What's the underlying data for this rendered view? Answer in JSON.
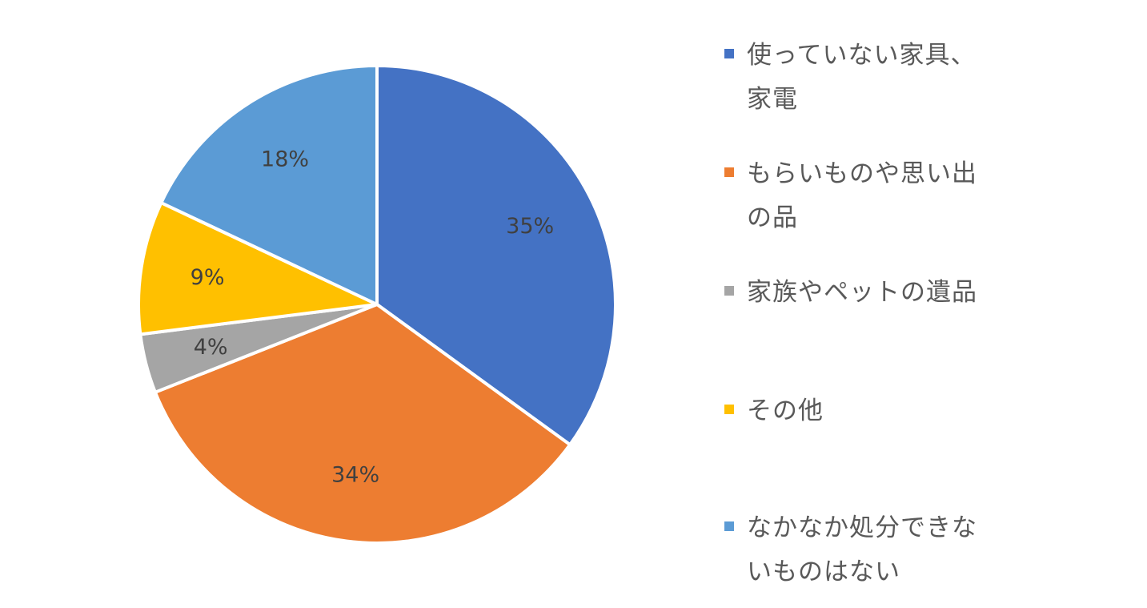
{
  "chart_data": {
    "type": "pie",
    "start_angle_deg": 0,
    "direction": "clockwise",
    "legend_position": "right",
    "slices": [
      {
        "label": "使っていない家具、家電",
        "line1": "使っていない家具、",
        "line2": "家電",
        "value": 35,
        "display": "35%",
        "color": "#4472C4"
      },
      {
        "label": "もらいものや思い出の品",
        "line1": "もらいものや思い出",
        "line2": "の品",
        "value": 34,
        "display": "34%",
        "color": "#ED7D31"
      },
      {
        "label": "家族やペットの遺品",
        "line1": "家族やペットの遺品",
        "line2": "",
        "value": 4,
        "display": "4%",
        "color": "#A5A5A5"
      },
      {
        "label": "その他",
        "line1": "その他",
        "line2": "",
        "value": 9,
        "display": "9%",
        "color": "#FFC000"
      },
      {
        "label": "なかなか処分できないものはない",
        "line1": "なかなか処分できな",
        "line2": "いものはない",
        "value": 18,
        "display": "18%",
        "color": "#5B9BD5"
      }
    ]
  }
}
